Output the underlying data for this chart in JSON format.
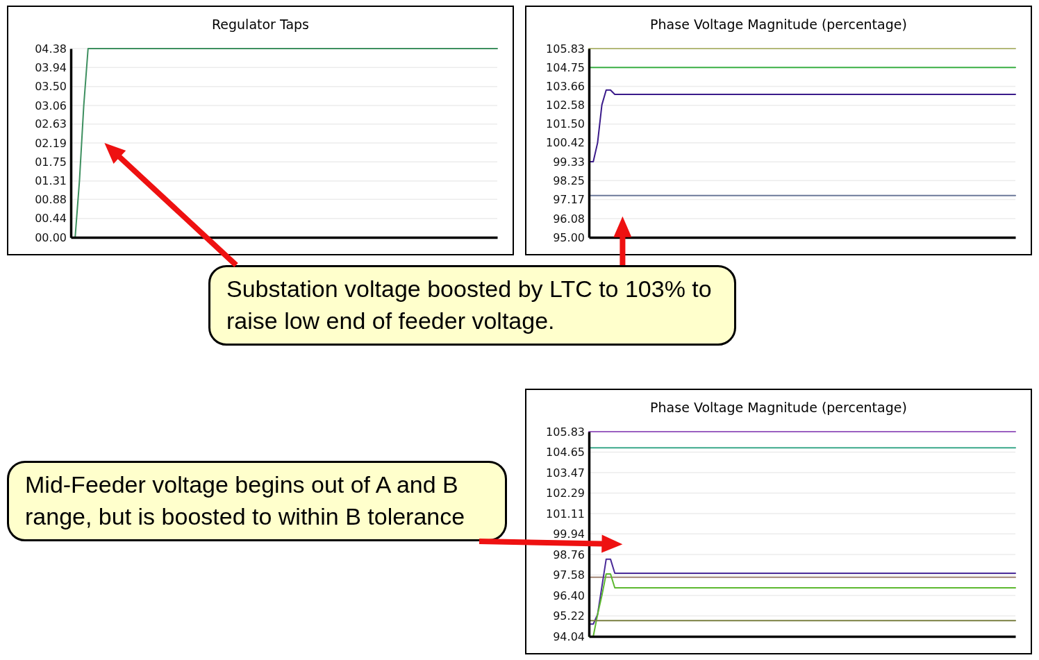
{
  "chart_data": [
    {
      "type": "line",
      "title": "Regulator Taps",
      "grid": "y",
      "tick_labels": "y",
      "categories": [
        null,
        null,
        null,
        null,
        null,
        null,
        null,
        null,
        null,
        null,
        null,
        null,
        null,
        null,
        null,
        null,
        null,
        null,
        null,
        null,
        null,
        null,
        null,
        null,
        null,
        null,
        null,
        null,
        null,
        null,
        null,
        null,
        null,
        null,
        null,
        null,
        null,
        null,
        null,
        null,
        null,
        null,
        null,
        null,
        null,
        null,
        null,
        null,
        null,
        null,
        null,
        null,
        null,
        null,
        null,
        null,
        null,
        null,
        null,
        null,
        null,
        null,
        null,
        null,
        null,
        null,
        null,
        null,
        null,
        null,
        null,
        null,
        null,
        null,
        null,
        null,
        null,
        null,
        null,
        null,
        null,
        null,
        null,
        null,
        null,
        null,
        null,
        null,
        null,
        null,
        null,
        null,
        null,
        null,
        null,
        null,
        null,
        null,
        null,
        null
      ],
      "ylim": [
        0,
        4.38
      ],
      "yticks": [
        {
          "value": 0,
          "label": "00.00"
        },
        {
          "value": 0.44,
          "label": "00.44"
        },
        {
          "value": 0.88,
          "label": "00.88"
        },
        {
          "value": 1.31,
          "label": "01.31"
        },
        {
          "value": 1.75,
          "label": "01.75"
        },
        {
          "value": 2.19,
          "label": "02.19"
        },
        {
          "value": 2.63,
          "label": "02.63"
        },
        {
          "value": 3.06,
          "label": "03.06"
        },
        {
          "value": 3.5,
          "label": "03.50"
        },
        {
          "value": 3.94,
          "label": "03.94"
        },
        {
          "value": 4.38,
          "label": "04.38"
        }
      ],
      "series": [
        {
          "color": "#3d8f5f",
          "values": [
            0,
            0,
            1.31,
            3.06,
            4.38,
            4.38,
            4.38,
            4.38,
            4.38,
            4.38,
            4.38,
            4.38,
            4.38,
            4.38,
            4.38,
            4.38,
            4.38,
            4.38,
            4.38,
            4.38,
            4.38,
            4.38,
            4.38,
            4.38,
            4.38,
            4.38,
            4.38,
            4.38,
            4.38,
            4.38,
            4.38,
            4.38,
            4.38,
            4.38,
            4.38,
            4.38,
            4.38,
            4.38,
            4.38,
            4.38,
            4.38,
            4.38,
            4.38,
            4.38,
            4.38,
            4.38,
            4.38,
            4.38,
            4.38,
            4.38,
            4.38,
            4.38,
            4.38,
            4.38,
            4.38,
            4.38,
            4.38,
            4.38,
            4.38,
            4.38,
            4.38,
            4.38,
            4.38,
            4.38,
            4.38,
            4.38,
            4.38,
            4.38,
            4.38,
            4.38,
            4.38,
            4.38,
            4.38,
            4.38,
            4.38,
            4.38,
            4.38,
            4.38,
            4.38,
            4.38,
            4.38,
            4.38,
            4.38,
            4.38,
            4.38,
            4.38,
            4.38,
            4.38,
            4.38,
            4.38,
            4.38,
            4.38,
            4.38,
            4.38,
            4.38,
            4.38,
            4.38,
            4.38,
            4.38,
            4.38
          ]
        }
      ],
      "annotations": [
        "Substation voltage boosted by LTC to 103% to raise low end of feeder voltage."
      ]
    },
    {
      "type": "line",
      "title": "Phase Voltage Magnitude (percentage)",
      "grid": "y",
      "tick_labels": "y",
      "categories": [
        null,
        null,
        null,
        null,
        null,
        null,
        null,
        null,
        null,
        null,
        null,
        null,
        null,
        null,
        null,
        null,
        null,
        null,
        null,
        null,
        null,
        null,
        null,
        null,
        null,
        null,
        null,
        null,
        null,
        null,
        null,
        null,
        null,
        null,
        null,
        null,
        null,
        null,
        null,
        null,
        null,
        null,
        null,
        null,
        null,
        null,
        null,
        null,
        null,
        null,
        null,
        null,
        null,
        null,
        null,
        null,
        null,
        null,
        null,
        null,
        null,
        null,
        null,
        null,
        null,
        null,
        null,
        null,
        null,
        null,
        null,
        null,
        null,
        null,
        null,
        null,
        null,
        null,
        null,
        null,
        null,
        null,
        null,
        null,
        null,
        null,
        null,
        null,
        null,
        null,
        null,
        null,
        null,
        null,
        null,
        null,
        null,
        null,
        null,
        null
      ],
      "ylim": [
        95,
        105.83
      ],
      "yticks": [
        {
          "value": 95,
          "label": "95.00"
        },
        {
          "value": 96.08,
          "label": "96.08"
        },
        {
          "value": 97.17,
          "label": "97.17"
        },
        {
          "value": 98.25,
          "label": "98.25"
        },
        {
          "value": 99.33,
          "label": "99.33"
        },
        {
          "value": 100.42,
          "label": "100.42"
        },
        {
          "value": 101.5,
          "label": "101.50"
        },
        {
          "value": 102.58,
          "label": "102.58"
        },
        {
          "value": 103.66,
          "label": "103.66"
        },
        {
          "value": 104.75,
          "label": "104.75"
        },
        {
          "value": 105.83,
          "label": "105.83"
        }
      ],
      "series": [
        {
          "color": "#b3b978",
          "values": [
            105.83,
            105.83,
            105.83,
            105.83,
            105.83,
            105.83,
            105.83,
            105.83,
            105.83,
            105.83,
            105.83,
            105.83,
            105.83,
            105.83,
            105.83,
            105.83,
            105.83,
            105.83,
            105.83,
            105.83,
            105.83,
            105.83,
            105.83,
            105.83,
            105.83,
            105.83,
            105.83,
            105.83,
            105.83,
            105.83,
            105.83,
            105.83,
            105.83,
            105.83,
            105.83,
            105.83,
            105.83,
            105.83,
            105.83,
            105.83,
            105.83,
            105.83,
            105.83,
            105.83,
            105.83,
            105.83,
            105.83,
            105.83,
            105.83,
            105.83,
            105.83,
            105.83,
            105.83,
            105.83,
            105.83,
            105.83,
            105.83,
            105.83,
            105.83,
            105.83,
            105.83,
            105.83,
            105.83,
            105.83,
            105.83,
            105.83,
            105.83,
            105.83,
            105.83,
            105.83,
            105.83,
            105.83,
            105.83,
            105.83,
            105.83,
            105.83,
            105.83,
            105.83,
            105.83,
            105.83,
            105.83,
            105.83,
            105.83,
            105.83,
            105.83,
            105.83,
            105.83,
            105.83,
            105.83,
            105.83,
            105.83,
            105.83,
            105.83,
            105.83,
            105.83,
            105.83,
            105.83,
            105.83,
            105.83,
            105.83
          ]
        },
        {
          "color": "#3bb044",
          "values": [
            104.75,
            104.75,
            104.75,
            104.75,
            104.75,
            104.75,
            104.75,
            104.75,
            104.75,
            104.75,
            104.75,
            104.75,
            104.75,
            104.75,
            104.75,
            104.75,
            104.75,
            104.75,
            104.75,
            104.75,
            104.75,
            104.75,
            104.75,
            104.75,
            104.75,
            104.75,
            104.75,
            104.75,
            104.75,
            104.75,
            104.75,
            104.75,
            104.75,
            104.75,
            104.75,
            104.75,
            104.75,
            104.75,
            104.75,
            104.75,
            104.75,
            104.75,
            104.75,
            104.75,
            104.75,
            104.75,
            104.75,
            104.75,
            104.75,
            104.75,
            104.75,
            104.75,
            104.75,
            104.75,
            104.75,
            104.75,
            104.75,
            104.75,
            104.75,
            104.75,
            104.75,
            104.75,
            104.75,
            104.75,
            104.75,
            104.75,
            104.75,
            104.75,
            104.75,
            104.75,
            104.75,
            104.75,
            104.75,
            104.75,
            104.75,
            104.75,
            104.75,
            104.75,
            104.75,
            104.75,
            104.75,
            104.75,
            104.75,
            104.75,
            104.75,
            104.75,
            104.75,
            104.75,
            104.75,
            104.75,
            104.75,
            104.75,
            104.75,
            104.75,
            104.75,
            104.75,
            104.75,
            104.75,
            104.75,
            104.75
          ]
        },
        {
          "color": "#3a1a8a",
          "values": [
            99.34,
            99.34,
            100.42,
            102.6,
            103.45,
            103.45,
            103.2,
            103.2,
            103.2,
            103.2,
            103.2,
            103.2,
            103.2,
            103.2,
            103.2,
            103.2,
            103.2,
            103.2,
            103.2,
            103.2,
            103.2,
            103.2,
            103.2,
            103.2,
            103.2,
            103.2,
            103.2,
            103.2,
            103.2,
            103.2,
            103.2,
            103.2,
            103.2,
            103.2,
            103.2,
            103.2,
            103.2,
            103.2,
            103.2,
            103.2,
            103.2,
            103.2,
            103.2,
            103.2,
            103.2,
            103.2,
            103.2,
            103.2,
            103.2,
            103.2,
            103.2,
            103.2,
            103.2,
            103.2,
            103.2,
            103.2,
            103.2,
            103.2,
            103.2,
            103.2,
            103.2,
            103.2,
            103.2,
            103.2,
            103.2,
            103.2,
            103.2,
            103.2,
            103.2,
            103.2,
            103.2,
            103.2,
            103.2,
            103.2,
            103.2,
            103.2,
            103.2,
            103.2,
            103.2,
            103.2,
            103.2,
            103.2,
            103.2,
            103.2,
            103.2,
            103.2,
            103.2,
            103.2,
            103.2,
            103.2,
            103.2,
            103.2,
            103.2,
            103.2,
            103.2,
            103.2,
            103.2,
            103.2,
            103.2,
            103.2
          ]
        },
        {
          "color": "#6b7899",
          "values": [
            97.4,
            97.4,
            97.4,
            97.4,
            97.4,
            97.4,
            97.4,
            97.4,
            97.4,
            97.4,
            97.4,
            97.4,
            97.4,
            97.4,
            97.4,
            97.4,
            97.4,
            97.4,
            97.4,
            97.4,
            97.4,
            97.4,
            97.4,
            97.4,
            97.4,
            97.4,
            97.4,
            97.4,
            97.4,
            97.4,
            97.4,
            97.4,
            97.4,
            97.4,
            97.4,
            97.4,
            97.4,
            97.4,
            97.4,
            97.4,
            97.4,
            97.4,
            97.4,
            97.4,
            97.4,
            97.4,
            97.4,
            97.4,
            97.4,
            97.4,
            97.4,
            97.4,
            97.4,
            97.4,
            97.4,
            97.4,
            97.4,
            97.4,
            97.4,
            97.4,
            97.4,
            97.4,
            97.4,
            97.4,
            97.4,
            97.4,
            97.4,
            97.4,
            97.4,
            97.4,
            97.4,
            97.4,
            97.4,
            97.4,
            97.4,
            97.4,
            97.4,
            97.4,
            97.4,
            97.4,
            97.4,
            97.4,
            97.4,
            97.4,
            97.4,
            97.4,
            97.4,
            97.4,
            97.4,
            97.4,
            97.4,
            97.4,
            97.4,
            97.4,
            97.4,
            97.4,
            97.4,
            97.4,
            97.4,
            97.4
          ]
        }
      ]
    },
    {
      "type": "line",
      "title": "Phase Voltage Magnitude (percentage)",
      "grid": "y",
      "tick_labels": "y",
      "categories": [
        null,
        null,
        null,
        null,
        null,
        null,
        null,
        null,
        null,
        null,
        null,
        null,
        null,
        null,
        null,
        null,
        null,
        null,
        null,
        null,
        null,
        null,
        null,
        null,
        null,
        null,
        null,
        null,
        null,
        null,
        null,
        null,
        null,
        null,
        null,
        null,
        null,
        null,
        null,
        null,
        null,
        null,
        null,
        null,
        null,
        null,
        null,
        null,
        null,
        null,
        null,
        null,
        null,
        null,
        null,
        null,
        null,
        null,
        null,
        null,
        null,
        null,
        null,
        null,
        null,
        null,
        null,
        null,
        null,
        null,
        null,
        null,
        null,
        null,
        null,
        null,
        null,
        null,
        null,
        null,
        null,
        null,
        null,
        null,
        null,
        null,
        null,
        null,
        null,
        null,
        null,
        null,
        null,
        null,
        null,
        null,
        null,
        null,
        null,
        null
      ],
      "ylim": [
        94.04,
        105.83
      ],
      "yticks": [
        {
          "value": 94.04,
          "label": "94.04"
        },
        {
          "value": 95.22,
          "label": "95.22"
        },
        {
          "value": 96.4,
          "label": "96.40"
        },
        {
          "value": 97.58,
          "label": "97.58"
        },
        {
          "value": 98.76,
          "label": "98.76"
        },
        {
          "value": 99.94,
          "label": "99.94"
        },
        {
          "value": 101.11,
          "label": "101.11"
        },
        {
          "value": 102.29,
          "label": "102.29"
        },
        {
          "value": 103.47,
          "label": "103.47"
        },
        {
          "value": 104.65,
          "label": "104.65"
        },
        {
          "value": 105.83,
          "label": "105.83"
        }
      ],
      "series": [
        {
          "color": "#9a5fc0",
          "values": [
            105.83,
            105.83,
            105.83,
            105.83,
            105.83,
            105.83,
            105.83,
            105.83,
            105.83,
            105.83,
            105.83,
            105.83,
            105.83,
            105.83,
            105.83,
            105.83,
            105.83,
            105.83,
            105.83,
            105.83,
            105.83,
            105.83,
            105.83,
            105.83,
            105.83,
            105.83,
            105.83,
            105.83,
            105.83,
            105.83,
            105.83,
            105.83,
            105.83,
            105.83,
            105.83,
            105.83,
            105.83,
            105.83,
            105.83,
            105.83,
            105.83,
            105.83,
            105.83,
            105.83,
            105.83,
            105.83,
            105.83,
            105.83,
            105.83,
            105.83,
            105.83,
            105.83,
            105.83,
            105.83,
            105.83,
            105.83,
            105.83,
            105.83,
            105.83,
            105.83,
            105.83,
            105.83,
            105.83,
            105.83,
            105.83,
            105.83,
            105.83,
            105.83,
            105.83,
            105.83,
            105.83,
            105.83,
            105.83,
            105.83,
            105.83,
            105.83,
            105.83,
            105.83,
            105.83,
            105.83,
            105.83,
            105.83,
            105.83,
            105.83,
            105.83,
            105.83,
            105.83,
            105.83,
            105.83,
            105.83,
            105.83,
            105.83,
            105.83,
            105.83,
            105.83,
            105.83,
            105.83,
            105.83,
            105.83,
            105.83
          ]
        },
        {
          "color": "#3aa88a",
          "values": [
            104.9,
            104.9,
            104.9,
            104.9,
            104.9,
            104.9,
            104.9,
            104.9,
            104.9,
            104.9,
            104.9,
            104.9,
            104.9,
            104.9,
            104.9,
            104.9,
            104.9,
            104.9,
            104.9,
            104.9,
            104.9,
            104.9,
            104.9,
            104.9,
            104.9,
            104.9,
            104.9,
            104.9,
            104.9,
            104.9,
            104.9,
            104.9,
            104.9,
            104.9,
            104.9,
            104.9,
            104.9,
            104.9,
            104.9,
            104.9,
            104.9,
            104.9,
            104.9,
            104.9,
            104.9,
            104.9,
            104.9,
            104.9,
            104.9,
            104.9,
            104.9,
            104.9,
            104.9,
            104.9,
            104.9,
            104.9,
            104.9,
            104.9,
            104.9,
            104.9,
            104.9,
            104.9,
            104.9,
            104.9,
            104.9,
            104.9,
            104.9,
            104.9,
            104.9,
            104.9,
            104.9,
            104.9,
            104.9,
            104.9,
            104.9,
            104.9,
            104.9,
            104.9,
            104.9,
            104.9,
            104.9,
            104.9,
            104.9,
            104.9,
            104.9,
            104.9,
            104.9,
            104.9,
            104.9,
            104.9,
            104.9,
            104.9,
            104.9,
            104.9,
            104.9,
            104.9,
            104.9,
            104.9,
            104.9,
            104.9
          ]
        },
        {
          "color": "#a08474",
          "values": [
            97.45,
            97.45,
            97.45,
            97.45,
            97.45,
            97.45,
            97.45,
            97.45,
            97.45,
            97.45,
            97.45,
            97.45,
            97.45,
            97.45,
            97.45,
            97.45,
            97.45,
            97.45,
            97.45,
            97.45,
            97.45,
            97.45,
            97.45,
            97.45,
            97.45,
            97.45,
            97.45,
            97.45,
            97.45,
            97.45,
            97.45,
            97.45,
            97.45,
            97.45,
            97.45,
            97.45,
            97.45,
            97.45,
            97.45,
            97.45,
            97.45,
            97.45,
            97.45,
            97.45,
            97.45,
            97.45,
            97.45,
            97.45,
            97.45,
            97.45,
            97.45,
            97.45,
            97.45,
            97.45,
            97.45,
            97.45,
            97.45,
            97.45,
            97.45,
            97.45,
            97.45,
            97.45,
            97.45,
            97.45,
            97.45,
            97.45,
            97.45,
            97.45,
            97.45,
            97.45,
            97.45,
            97.45,
            97.45,
            97.45,
            97.45,
            97.45,
            97.45,
            97.45,
            97.45,
            97.45,
            97.45,
            97.45,
            97.45,
            97.45,
            97.45,
            97.45,
            97.45,
            97.45,
            97.45,
            97.45,
            97.45,
            97.45,
            97.45,
            97.45,
            97.45,
            97.45,
            97.45,
            97.45,
            97.45,
            97.45
          ]
        },
        {
          "color": "#4a2a98",
          "values": [
            94.75,
            94.75,
            95.3,
            96.9,
            98.49,
            98.49,
            97.68,
            97.68,
            97.68,
            97.68,
            97.68,
            97.68,
            97.68,
            97.68,
            97.68,
            97.68,
            97.68,
            97.68,
            97.68,
            97.68,
            97.68,
            97.68,
            97.68,
            97.68,
            97.68,
            97.68,
            97.68,
            97.68,
            97.68,
            97.68,
            97.68,
            97.68,
            97.68,
            97.68,
            97.68,
            97.68,
            97.68,
            97.68,
            97.68,
            97.68,
            97.68,
            97.68,
            97.68,
            97.68,
            97.68,
            97.68,
            97.68,
            97.68,
            97.68,
            97.68,
            97.68,
            97.68,
            97.68,
            97.68,
            97.68,
            97.68,
            97.68,
            97.68,
            97.68,
            97.68,
            97.68,
            97.68,
            97.68,
            97.68,
            97.68,
            97.68,
            97.68,
            97.68,
            97.68,
            97.68,
            97.68,
            97.68,
            97.68,
            97.68,
            97.68,
            97.68,
            97.68,
            97.68,
            97.68,
            97.68,
            97.68,
            97.68,
            97.68,
            97.68,
            97.68,
            97.68,
            97.68,
            97.68,
            97.68,
            97.68,
            97.68,
            97.68,
            97.68,
            97.68,
            97.68,
            97.68,
            97.68,
            97.68,
            97.68,
            97.68
          ]
        },
        {
          "color": "#5cb82e",
          "values": [
            94.04,
            94.04,
            95.3,
            96.4,
            97.64,
            97.64,
            96.84,
            96.84,
            96.84,
            96.84,
            96.84,
            96.84,
            96.84,
            96.84,
            96.84,
            96.84,
            96.84,
            96.84,
            96.84,
            96.84,
            96.84,
            96.84,
            96.84,
            96.84,
            96.84,
            96.84,
            96.84,
            96.84,
            96.84,
            96.84,
            96.84,
            96.84,
            96.84,
            96.84,
            96.84,
            96.84,
            96.84,
            96.84,
            96.84,
            96.84,
            96.84,
            96.84,
            96.84,
            96.84,
            96.84,
            96.84,
            96.84,
            96.84,
            96.84,
            96.84,
            96.84,
            96.84,
            96.84,
            96.84,
            96.84,
            96.84,
            96.84,
            96.84,
            96.84,
            96.84,
            96.84,
            96.84,
            96.84,
            96.84,
            96.84,
            96.84,
            96.84,
            96.84,
            96.84,
            96.84,
            96.84,
            96.84,
            96.84,
            96.84,
            96.84,
            96.84,
            96.84,
            96.84,
            96.84,
            96.84,
            96.84,
            96.84,
            96.84,
            96.84,
            96.84,
            96.84,
            96.84,
            96.84,
            96.84,
            96.84,
            96.84,
            96.84,
            96.84,
            96.84,
            96.84,
            96.84,
            96.84,
            96.84,
            96.84,
            96.84
          ]
        },
        {
          "color": "#7a7f40",
          "values": [
            94.95,
            94.95,
            94.95,
            94.95,
            94.95,
            94.95,
            94.95,
            94.95,
            94.95,
            94.95,
            94.95,
            94.95,
            94.95,
            94.95,
            94.95,
            94.95,
            94.95,
            94.95,
            94.95,
            94.95,
            94.95,
            94.95,
            94.95,
            94.95,
            94.95,
            94.95,
            94.95,
            94.95,
            94.95,
            94.95,
            94.95,
            94.95,
            94.95,
            94.95,
            94.95,
            94.95,
            94.95,
            94.95,
            94.95,
            94.95,
            94.95,
            94.95,
            94.95,
            94.95,
            94.95,
            94.95,
            94.95,
            94.95,
            94.95,
            94.95,
            94.95,
            94.95,
            94.95,
            94.95,
            94.95,
            94.95,
            94.95,
            94.95,
            94.95,
            94.95,
            94.95,
            94.95,
            94.95,
            94.95,
            94.95,
            94.95,
            94.95,
            94.95,
            94.95,
            94.95,
            94.95,
            94.95,
            94.95,
            94.95,
            94.95,
            94.95,
            94.95,
            94.95,
            94.95,
            94.95,
            94.95,
            94.95,
            94.95,
            94.95,
            94.95,
            94.95,
            94.95,
            94.95,
            94.95,
            94.95,
            94.95,
            94.95,
            94.95,
            94.95,
            94.95,
            94.95,
            94.95,
            94.95,
            94.95,
            94.95
          ]
        }
      ],
      "annotations": [
        "Mid-Feeder voltage begins out of A and B range, but is boosted to within B tolerance"
      ]
    }
  ]
}
